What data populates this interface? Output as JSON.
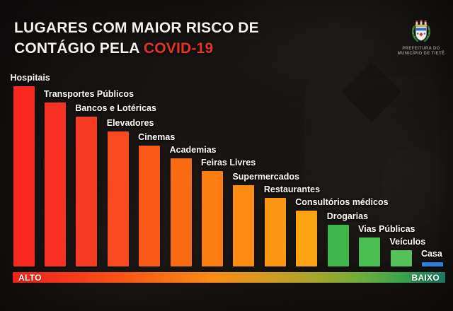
{
  "title": {
    "line1": "LUGARES COM MAIOR RISCO DE",
    "line2_prefix": "CONTÁGIO PELA ",
    "line2_highlight": "COVID-19",
    "highlight_color": "#e73228"
  },
  "logo": {
    "caption_line1": "PREFEITURA DO",
    "caption_line2": "MUNICÍPIO DE TIETÊ"
  },
  "chart_data": {
    "type": "bar",
    "title": "Lugares com maior risco de contágio pela COVID-19",
    "categories": [
      "Hospitais",
      "Transportes Públicos",
      "Bancos e Lotéricas",
      "Elevadores",
      "Cinemas",
      "Academias",
      "Feiras Livres",
      "Supermercados",
      "Restaurantes",
      "Consultórios médicos",
      "Drogarias",
      "Vias Públicas",
      "Veículos",
      "Casa"
    ],
    "values": [
      100,
      91,
      83,
      75,
      67,
      60,
      53,
      45,
      38,
      31,
      23,
      16,
      9,
      2.4
    ],
    "ylim": [
      0,
      100
    ],
    "grid": false,
    "value_labels_shown": false,
    "bar_colors": [
      "#f8291f",
      "#f93123",
      "#f93d24",
      "#f94b1f",
      "#fa5a18",
      "#fa6c11",
      "#fb7d11",
      "#fb8b12",
      "#fb9713",
      "#fba313",
      "#3fb54a",
      "#4abd51",
      "#53c25a",
      "#2a7fe1"
    ],
    "risk_scale": {
      "left": "ALTO",
      "right": "BAIXO",
      "gradient_stops": [
        {
          "color": "#ef2318",
          "pos": 0
        },
        {
          "color": "#f63619",
          "pos": 12
        },
        {
          "color": "#f85c15",
          "pos": 28
        },
        {
          "color": "#f98c12",
          "pos": 46
        },
        {
          "color": "#cf9c20",
          "pos": 60
        },
        {
          "color": "#a8a42b",
          "pos": 70
        },
        {
          "color": "#6fae38",
          "pos": 80
        },
        {
          "color": "#3ca34c",
          "pos": 90
        },
        {
          "color": "#23885c",
          "pos": 96
        },
        {
          "color": "#1c7a61",
          "pos": 100
        }
      ]
    }
  }
}
